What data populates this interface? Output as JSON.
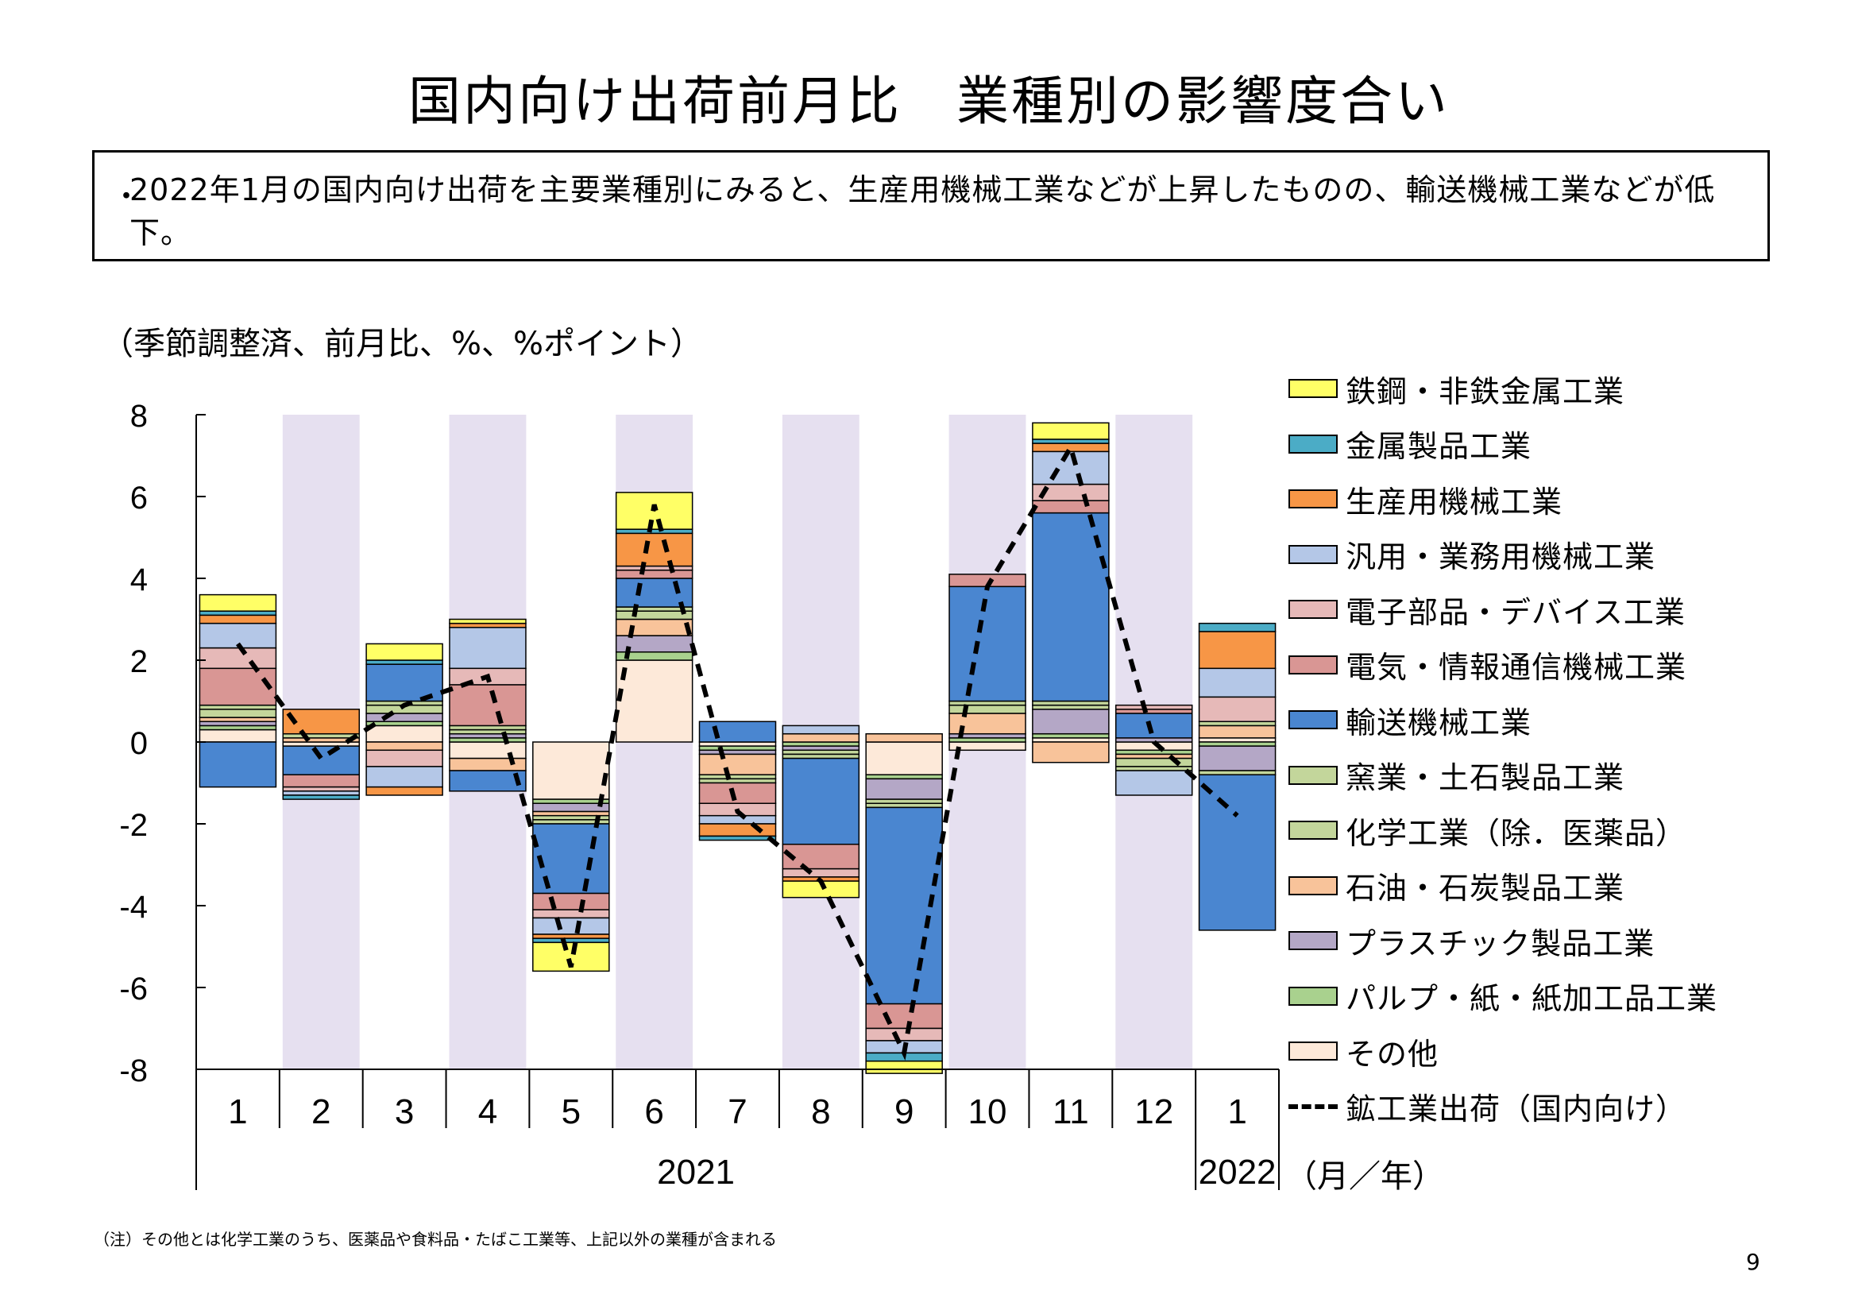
{
  "title": "国内向け出荷前月比　業種別の影響度合い",
  "summary": {
    "bullet": "・",
    "text": "2022年1月の国内向け出荷を主要業種別にみると、生産用機械工業などが上昇したものの、輸送機械工業などが低下。"
  },
  "unit_note": "（季節調整済、前月比、%、%ポイント）",
  "axis_unit_label": "（月／年）",
  "footnote": "（注）その他とは化学工業のうち、医薬品や食料品・たばこ工業等、上記以外の業種が含まれる",
  "page_number": "9",
  "chart_data": {
    "type": "bar",
    "stacked": true,
    "title": "国内向け出荷前月比　業種別の影響度合い",
    "ylim": [
      -8,
      8
    ],
    "yticks": [
      "8",
      "6",
      "4",
      "2",
      "0",
      "-2",
      "-4",
      "-6",
      "-8"
    ],
    "ytick_values": [
      8,
      6,
      4,
      2,
      0,
      -2,
      -4,
      -6,
      -8
    ],
    "categories": [
      "1",
      "2",
      "3",
      "4",
      "5",
      "6",
      "7",
      "8",
      "9",
      "10",
      "11",
      "12",
      "1"
    ],
    "year_labels": [
      {
        "label": "2021",
        "from": 0,
        "to": 11
      },
      {
        "label": "2022",
        "from": 12,
        "to": 12
      }
    ],
    "shaded_months": [
      1,
      3,
      5,
      7,
      9,
      11
    ],
    "shade_color": "#e6e0f0",
    "legend_position": "right",
    "series": [
      {
        "name": "その他",
        "color": "#fde9d9",
        "values": [
          0.3,
          -0.1,
          0.4,
          -0.4,
          -1.4,
          2.0,
          -0.1,
          0.0,
          -0.8,
          -0.2,
          0.1,
          -0.2,
          0.1
        ]
      },
      {
        "name": "パルプ・紙・紙加工品工業",
        "color": "#a9d18e",
        "values": [
          0.1,
          0.0,
          0.1,
          0.1,
          -0.1,
          0.2,
          -0.1,
          -0.1,
          -0.1,
          0.1,
          0.1,
          -0.1,
          -0.1
        ]
      },
      {
        "name": "プラスチック製品工業",
        "color": "#b4a7c6",
        "values": [
          0.1,
          0.0,
          0.2,
          0.1,
          -0.2,
          0.4,
          -0.1,
          -0.1,
          -0.5,
          0.1,
          0.6,
          0.1,
          -0.6
        ]
      },
      {
        "name": "石油・石炭製品工業",
        "color": "#f8c39a",
        "values": [
          0.1,
          0.1,
          -0.2,
          -0.3,
          -0.1,
          0.4,
          -0.5,
          0.2,
          0.2,
          0.5,
          -0.5,
          -0.1,
          0.3
        ]
      },
      {
        "name": "化学工業（除．医薬品）",
        "color": "#c3d69b",
        "values": [
          0.2,
          0.1,
          0.2,
          0.1,
          -0.1,
          0.2,
          -0.1,
          -0.1,
          -0.1,
          0.2,
          0.1,
          -0.2,
          0.1
        ]
      },
      {
        "name": "窯業・土石製品工業",
        "color": "#c3d69b",
        "values": [
          0.1,
          0.0,
          0.1,
          0.1,
          -0.1,
          0.1,
          -0.1,
          -0.1,
          -0.1,
          0.1,
          0.1,
          -0.1,
          -0.1
        ]
      },
      {
        "name": "輸送機械工業",
        "color": "#4a86d0",
        "values": [
          -1.1,
          -0.7,
          0.9,
          -0.5,
          -1.7,
          0.7,
          0.5,
          -2.1,
          -4.8,
          2.8,
          4.6,
          0.6,
          -3.8
        ]
      },
      {
        "name": "電気・情報通信機械工業",
        "color": "#d99694",
        "values": [
          0.9,
          -0.3,
          0.0,
          1.0,
          -0.4,
          0.2,
          -0.5,
          -0.6,
          -0.6,
          0.3,
          0.3,
          0.1,
          0.0
        ]
      },
      {
        "name": "電子部品・デバイス工業",
        "color": "#e6b9b8",
        "values": [
          0.5,
          -0.1,
          -0.4,
          0.4,
          -0.2,
          0.1,
          -0.3,
          -0.2,
          -0.3,
          0.0,
          0.4,
          0.1,
          0.6
        ]
      },
      {
        "name": "汎用・業務用機械工業",
        "color": "#b4c7e7",
        "values": [
          0.6,
          -0.1,
          -0.5,
          1.0,
          -0.4,
          0.0,
          -0.2,
          0.2,
          -0.3,
          0.0,
          0.8,
          -0.6,
          0.7
        ]
      },
      {
        "name": "生産用機械工業",
        "color": "#f79646",
        "values": [
          0.2,
          0.6,
          -0.2,
          0.1,
          -0.1,
          0.8,
          -0.3,
          -0.1,
          0.0,
          0.0,
          0.2,
          0.0,
          0.9
        ]
      },
      {
        "name": "金属製品工業",
        "color": "#4bacc6",
        "values": [
          0.1,
          -0.1,
          0.1,
          0.0,
          -0.1,
          0.1,
          -0.1,
          0.0,
          -0.2,
          0.0,
          0.1,
          0.0,
          0.2
        ]
      },
      {
        "name": "鉄鋼・非鉄金属工業",
        "color": "#ffff66",
        "values": [
          0.4,
          0.0,
          0.4,
          0.1,
          -0.7,
          0.9,
          0.0,
          -0.4,
          -0.3,
          0.0,
          0.4,
          0.0,
          0.0
        ]
      }
    ],
    "line": {
      "name": "鉱工業出荷（国内向け）",
      "color": "#000000",
      "values": [
        2.4,
        -0.4,
        0.9,
        1.6,
        -5.5,
        5.8,
        -1.7,
        -3.4,
        -7.6,
        3.8,
        7.2,
        0.0,
        -1.8
      ]
    }
  }
}
